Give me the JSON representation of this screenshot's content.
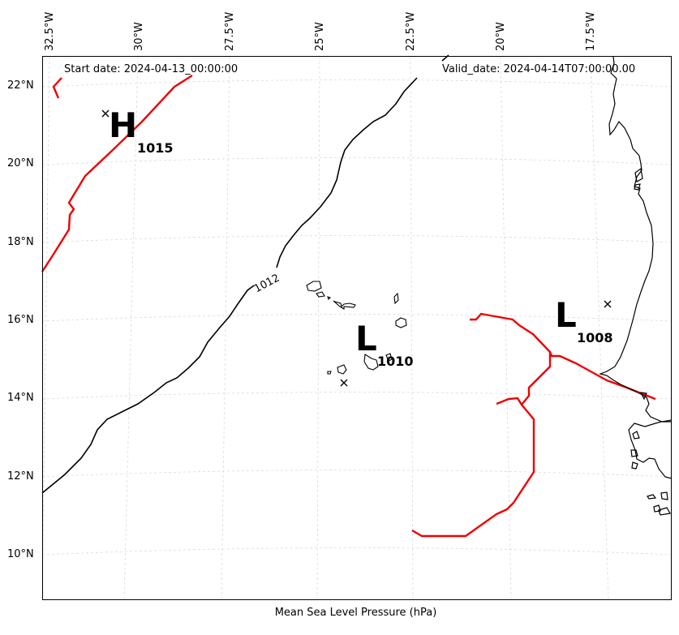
{
  "header": {
    "start_date": "Start date: 2024-04-13_00:00:00",
    "valid_date": "Valid_date: 2024-04-14T07:00:00.00"
  },
  "axes": {
    "xlabel": "Mean Sea Level Pressure (hPa)",
    "lon_labels": [
      "32.5°W",
      "30°W",
      "27.5°W",
      "25°W",
      "22.5°W",
      "20°W",
      "17.5°W"
    ],
    "lat_labels": [
      "22°N",
      "20°N",
      "18°N",
      "16°N",
      "14°N",
      "12°N",
      "10°N"
    ],
    "grid": true
  },
  "isobars": [
    {
      "value": "1012",
      "color": "#000000"
    }
  ],
  "fronts": {
    "color": "#ee0000"
  },
  "pressure_systems": [
    {
      "type": "H",
      "value": "1015"
    },
    {
      "type": "L",
      "value": "1010"
    },
    {
      "type": "L",
      "value": "1008"
    }
  ]
}
